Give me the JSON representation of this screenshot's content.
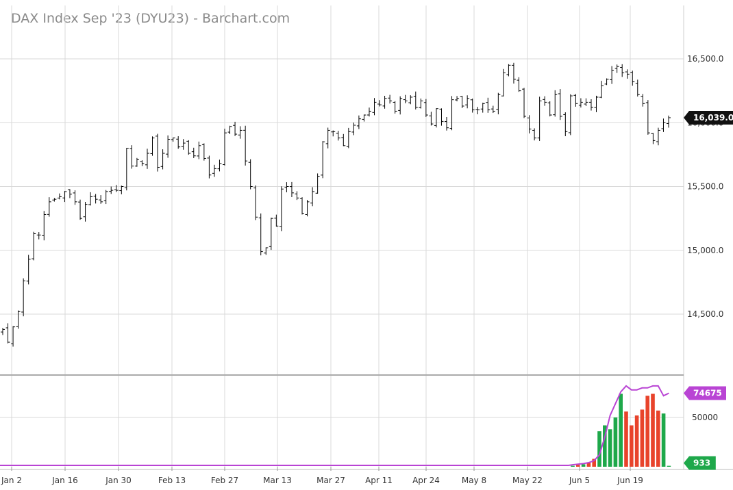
{
  "chart_data": [
    {
      "type": "ohlc",
      "title": "DAX Index Sep '23 (DYU23) - Barchart.com",
      "ylim": [
        13900,
        16750
      ],
      "y_ticks": [
        "14,500.0",
        "15,000.0",
        "15,500.0",
        "16,000.0",
        "16,500.0"
      ],
      "x_ticks": [
        "Jan 2",
        "Jan 16",
        "Jan 30",
        "Feb 13",
        "Feb 27",
        "Mar 13",
        "Mar 27",
        "Apr 11",
        "Apr 24",
        "May 8",
        "May 22",
        "Jun 5",
        "Jun 19"
      ],
      "last_price": "16,039.0",
      "grid": true,
      "close": [
        14380,
        14280,
        14400,
        14520,
        14760,
        14930,
        15130,
        15120,
        15280,
        15380,
        15400,
        15420,
        15460,
        15440,
        15380,
        15250,
        15360,
        15420,
        15400,
        15380,
        15460,
        15470,
        15470,
        15500,
        15800,
        15660,
        15710,
        15680,
        15760,
        15880,
        15650,
        15760,
        15870,
        15880,
        15810,
        15840,
        15760,
        15740,
        15820,
        15720,
        15590,
        15640,
        15680,
        15920,
        15970,
        15910,
        15940,
        15700,
        15500,
        15260,
        14990,
        15020,
        15250,
        15190,
        15480,
        15500,
        15450,
        15410,
        15290,
        15380,
        15460,
        15580,
        15850,
        15940,
        15930,
        15880,
        15820,
        15930,
        15980,
        16030,
        16060,
        16090,
        16160,
        16140,
        16190,
        16170,
        16090,
        16190,
        16170,
        16200,
        16120,
        16170,
        16060,
        15990,
        16110,
        16010,
        15960,
        16180,
        16190,
        16130,
        16190,
        16100,
        16100,
        16150,
        16100,
        16090,
        16220,
        16390,
        16450,
        16340,
        16250,
        16050,
        15950,
        15880,
        16170,
        16160,
        16060,
        16220,
        16050,
        15930,
        16210,
        16150,
        16160,
        16160,
        16120,
        16200,
        16290,
        16340,
        16410,
        16440,
        16390,
        16380,
        16320,
        16220,
        16150,
        15920,
        15860,
        15940,
        16000,
        16039
      ]
    },
    {
      "type": "bar",
      "label": "volume",
      "y_ticks": [
        "50000"
      ],
      "last_value": "933",
      "ma_value": "74675",
      "bars": [
        {
          "v": 1000,
          "c": "green"
        },
        {
          "v": 2000,
          "c": "red"
        },
        {
          "v": 2500,
          "c": "green"
        },
        {
          "v": 4000,
          "c": "red"
        },
        {
          "v": 8000,
          "c": "red"
        },
        {
          "v": 36000,
          "c": "green"
        },
        {
          "v": 42000,
          "c": "green"
        },
        {
          "v": 38000,
          "c": "green"
        },
        {
          "v": 50000,
          "c": "green"
        },
        {
          "v": 74000,
          "c": "green"
        },
        {
          "v": 56000,
          "c": "red"
        },
        {
          "v": 42000,
          "c": "red"
        },
        {
          "v": 52000,
          "c": "red"
        },
        {
          "v": 58000,
          "c": "red"
        },
        {
          "v": 72000,
          "c": "red"
        },
        {
          "v": 74000,
          "c": "red"
        },
        {
          "v": 57000,
          "c": "red"
        },
        {
          "v": 54000,
          "c": "green"
        },
        {
          "v": 933,
          "c": "green"
        }
      ],
      "ma": [
        2000,
        2600,
        3200,
        4200,
        6200,
        12000,
        30000,
        52000,
        64000,
        76000,
        82000,
        78000,
        78000,
        80000,
        80000,
        82000,
        82000,
        72000,
        74675
      ]
    }
  ],
  "colors": {
    "up": "#1ea84a",
    "down": "#e8432b",
    "ma": "#b944d4",
    "price_badge": "#111111",
    "grid": "#d9d9d9"
  }
}
